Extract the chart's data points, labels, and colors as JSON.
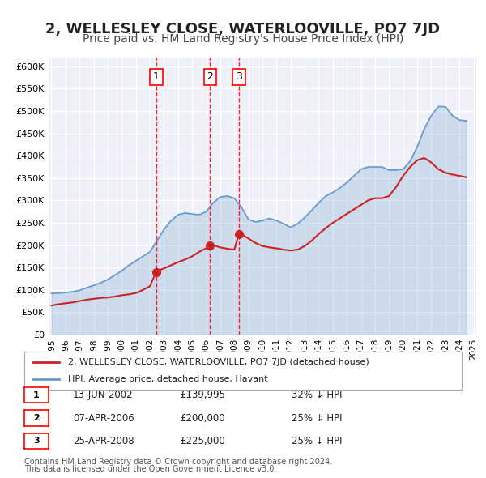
{
  "title": "2, WELLESLEY CLOSE, WATERLOOVILLE, PO7 7JD",
  "subtitle": "Price paid vs. HM Land Registry's House Price Index (HPI)",
  "title_fontsize": 13,
  "subtitle_fontsize": 10,
  "background_color": "#ffffff",
  "plot_bg_color": "#f0f0f8",
  "grid_color": "#ffffff",
  "ylabel": "",
  "ylim": [
    0,
    620000
  ],
  "yticks": [
    0,
    50000,
    100000,
    150000,
    200000,
    250000,
    300000,
    350000,
    400000,
    450000,
    500000,
    550000,
    600000
  ],
  "ytick_labels": [
    "£0",
    "£50K",
    "£100K",
    "£150K",
    "£200K",
    "£250K",
    "£300K",
    "£350K",
    "£400K",
    "£450K",
    "£500K",
    "£550K",
    "£600K"
  ],
  "hpi_color": "#6699cc",
  "price_color": "#cc2222",
  "marker_color": "#cc2222",
  "legend_label_price": "2, WELLESLEY CLOSE, WATERLOOVILLE, PO7 7JD (detached house)",
  "legend_label_hpi": "HPI: Average price, detached house, Havant",
  "transactions": [
    {
      "num": 1,
      "date": "13-JUN-2002",
      "price": 139995,
      "pct": "32%",
      "x": 2002.45
    },
    {
      "num": 2,
      "date": "07-APR-2006",
      "price": 200000,
      "pct": "25%",
      "x": 2006.27
    },
    {
      "num": 3,
      "date": "25-APR-2008",
      "price": 225000,
      "pct": "25%",
      "x": 2008.32
    }
  ],
  "footnote1": "Contains HM Land Registry data © Crown copyright and database right 2024.",
  "footnote2": "This data is licensed under the Open Government Licence v3.0.",
  "hpi_data_x": [
    1995,
    1995.5,
    1996,
    1996.5,
    1997,
    1997.5,
    1998,
    1998.5,
    1999,
    1999.5,
    2000,
    2000.5,
    2001,
    2001.5,
    2002,
    2002.5,
    2003,
    2003.5,
    2004,
    2004.5,
    2005,
    2005.5,
    2006,
    2006.5,
    2007,
    2007.5,
    2008,
    2008.5,
    2009,
    2009.5,
    2010,
    2010.5,
    2011,
    2011.5,
    2012,
    2012.5,
    2013,
    2013.5,
    2014,
    2014.5,
    2015,
    2015.5,
    2016,
    2016.5,
    2017,
    2017.5,
    2018,
    2018.5,
    2019,
    2019.5,
    2020,
    2020.5,
    2021,
    2021.5,
    2022,
    2022.5,
    2023,
    2023.5,
    2024,
    2024.5
  ],
  "hpi_data_y": [
    92000,
    93000,
    94000,
    96000,
    99000,
    105000,
    110000,
    116000,
    123000,
    133000,
    143000,
    155000,
    165000,
    175000,
    185000,
    210000,
    235000,
    255000,
    268000,
    272000,
    270000,
    268000,
    275000,
    295000,
    308000,
    310000,
    305000,
    285000,
    258000,
    252000,
    255000,
    260000,
    255000,
    248000,
    240000,
    248000,
    262000,
    278000,
    295000,
    310000,
    318000,
    328000,
    340000,
    355000,
    370000,
    375000,
    375000,
    375000,
    368000,
    368000,
    370000,
    388000,
    420000,
    460000,
    490000,
    510000,
    510000,
    490000,
    480000,
    478000
  ],
  "price_data_x": [
    1995,
    1995.5,
    1996,
    1996.5,
    1997,
    1997.5,
    1998,
    1998.5,
    1999,
    1999.5,
    2000,
    2000.5,
    2001,
    2001.5,
    2002,
    2002.45,
    2002.5,
    2003,
    2003.5,
    2004,
    2004.5,
    2005,
    2005.5,
    2006,
    2006.27,
    2006.5,
    2007,
    2007.5,
    2008,
    2008.32,
    2008.5,
    2009,
    2009.5,
    2010,
    2010.5,
    2011,
    2011.5,
    2012,
    2012.5,
    2013,
    2013.5,
    2014,
    2014.5,
    2015,
    2015.5,
    2016,
    2016.5,
    2017,
    2017.5,
    2018,
    2018.5,
    2019,
    2019.5,
    2020,
    2020.5,
    2021,
    2021.5,
    2022,
    2022.5,
    2023,
    2023.5,
    2024,
    2024.5
  ],
  "price_data_y": [
    65000,
    68000,
    70000,
    72000,
    75000,
    78000,
    80000,
    82000,
    83000,
    85000,
    88000,
    90000,
    93000,
    100000,
    108000,
    139995,
    142000,
    148000,
    155000,
    162000,
    168000,
    175000,
    185000,
    193000,
    200000,
    200000,
    195000,
    192000,
    190000,
    225000,
    225000,
    215000,
    205000,
    198000,
    195000,
    193000,
    190000,
    188000,
    190000,
    198000,
    210000,
    225000,
    238000,
    250000,
    260000,
    270000,
    280000,
    290000,
    300000,
    305000,
    305000,
    310000,
    330000,
    355000,
    375000,
    390000,
    395000,
    385000,
    370000,
    362000,
    358000,
    355000,
    352000
  ]
}
